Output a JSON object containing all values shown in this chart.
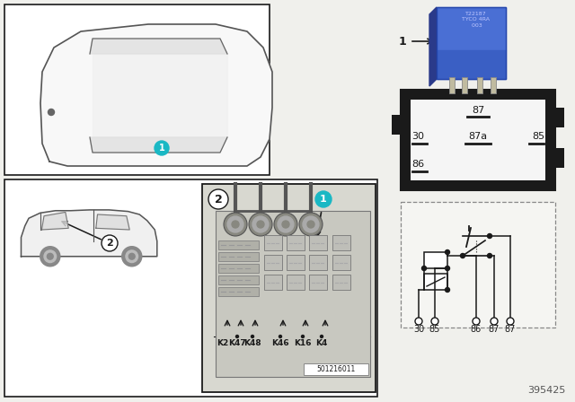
{
  "bg_color": "#f0f0ec",
  "teal_color": "#1ab8c4",
  "black": "#000000",
  "white": "#ffffff",
  "dark": "#1a1a1a",
  "gray1": "#cccccc",
  "gray2": "#aaaaaa",
  "relay_blue": "#3a5fcd",
  "title_num": "395425",
  "diagram_code": "501216011",
  "pin_labels_box": [
    "87",
    "30",
    "87a",
    "85",
    "86"
  ],
  "pin_labels_schematic": [
    "30",
    "85",
    "86",
    "87",
    "87"
  ],
  "fuse_labels": [
    "K2",
    "K47",
    "K48",
    "K46",
    "K16",
    "K4"
  ]
}
